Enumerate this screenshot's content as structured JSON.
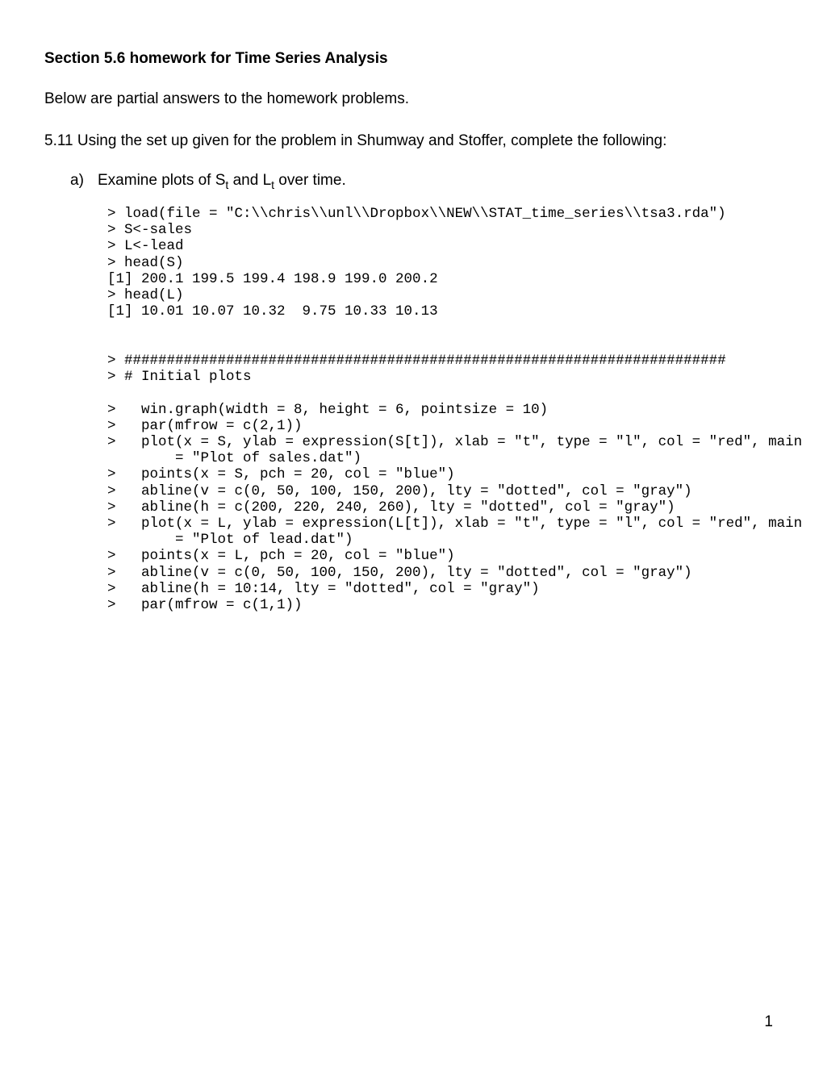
{
  "title": "Section 5.6 homework for Time Series Analysis",
  "intro": "Below are partial answers to the homework problems.",
  "problem": "5.11 Using the set up given for the problem in Shumway and Stoffer, complete the following:",
  "item_marker": "a)",
  "item_text_prefix": "Examine plots of S",
  "item_sub1": "t",
  "item_text_mid": " and L",
  "item_sub2": "t",
  "item_text_suffix": " over time.",
  "code_block": "> load(file = \"C:\\\\chris\\\\unl\\\\Dropbox\\\\NEW\\\\STAT_time_series\\\\tsa3.rda\")\n> S<-sales\n> L<-lead\n> head(S)\n[1] 200.1 199.5 199.4 198.9 199.0 200.2\n> head(L)\n[1] 10.01 10.07 10.32  9.75 10.33 10.13\n\n\n> #######################################################################\n> # Initial plots\n\n>   win.graph(width = 8, height = 6, pointsize = 10)\n>   par(mfrow = c(2,1))\n>   plot(x = S, ylab = expression(S[t]), xlab = \"t\", type = \"l\", col = \"red\", main\n        = \"Plot of sales.dat\")\n>   points(x = S, pch = 20, col = \"blue\")\n>   abline(v = c(0, 50, 100, 150, 200), lty = \"dotted\", col = \"gray\")\n>   abline(h = c(200, 220, 240, 260), lty = \"dotted\", col = \"gray\")\n>   plot(x = L, ylab = expression(L[t]), xlab = \"t\", type = \"l\", col = \"red\", main\n        = \"Plot of lead.dat\")\n>   points(x = L, pch = 20, col = \"blue\")\n>   abline(v = c(0, 50, 100, 150, 200), lty = \"dotted\", col = \"gray\")\n>   abline(h = 10:14, lty = \"dotted\", col = \"gray\")\n>   par(mfrow = c(1,1))",
  "page_number": "1",
  "colors": {
    "background": "#ffffff",
    "text": "#000000"
  },
  "fonts": {
    "body_family": "Arial",
    "body_size_pt": 14,
    "code_family": "Courier New",
    "code_size_pt": 13
  }
}
